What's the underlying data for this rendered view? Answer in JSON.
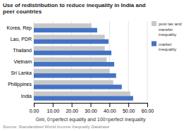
{
  "chart_data": {
    "type": "bar",
    "orientation": "horizontal",
    "title": "Use of redistribution to reduce inequality in India and\npeer countries",
    "x_label": "Gini, 0=perfect equality and 100=perfect inequality",
    "annotations": [
      "Source: Standardized World Income Inequality Database"
    ],
    "categories": [
      "India",
      "Philippines",
      "Sri Lanka",
      "Vietnam",
      "Thailand",
      "Lao, PDR",
      "Korea, Rep"
    ],
    "series": [
      {
        "name": "post tax and\ntransfer\ninequality",
        "color": "#c8c8c8",
        "values": [
          51.0,
          42.0,
          40.0,
          38.5,
          37.5,
          37.5,
          30.5
        ]
      },
      {
        "name": "market\ninequality",
        "color": "#4472c4",
        "values": [
          52.5,
          46.5,
          43.5,
          42.5,
          41.0,
          39.5,
          33.5
        ]
      }
    ],
    "xlim": [
      0,
      60
    ],
    "xticks": [
      {
        "value": 0,
        "label": "0.00"
      },
      {
        "value": 10,
        "label": "10.00"
      },
      {
        "value": 20,
        "label": "20.00"
      },
      {
        "value": 30,
        "label": "30.00"
      },
      {
        "value": 40,
        "label": "40.00"
      },
      {
        "value": 50,
        "label": "50.00"
      },
      {
        "value": 60,
        "label": "60.00"
      }
    ],
    "grid": true,
    "legend": "right"
  }
}
